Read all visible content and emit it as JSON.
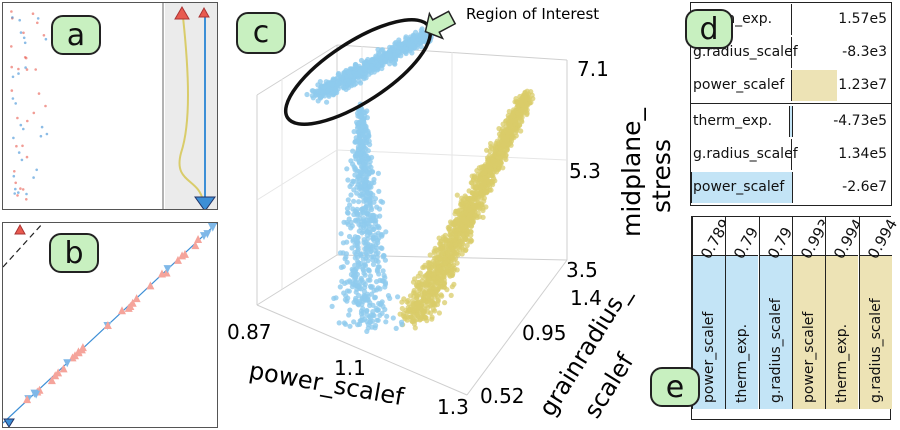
{
  "badges": {
    "a": "a",
    "b": "b",
    "c": "c",
    "d": "d",
    "e": "e"
  },
  "colors": {
    "blue_cluster": "#8ecbee",
    "yellow_cluster": "#d9cc6a",
    "red_marker": "#e85a4f",
    "blue_marker": "#3d8fd6",
    "badge_fill": "#c8f0c0",
    "blue_fill": "#c3e4f6",
    "tan_fill": "#ede3b5"
  },
  "chart_data": {
    "type": "scatter",
    "annotation": "Region of Interest",
    "x_axis": {
      "label": "power_scalef",
      "ticks": [
        "0.87",
        "1.1",
        "1.3"
      ],
      "range": [
        0.87,
        1.3
      ]
    },
    "y_axis": {
      "label": [
        "grainradius_",
        "scalef"
      ],
      "ticks": [
        "0.52",
        "0.95",
        "1.4"
      ],
      "range": [
        0.52,
        1.4
      ]
    },
    "z_axis": {
      "label": [
        "midplane_",
        "stress"
      ],
      "ticks": [
        "3.5",
        "5.3",
        "7.1"
      ],
      "range": [
        3.5,
        7.1
      ]
    },
    "series": [
      {
        "color": "#8ecbee",
        "role": "highlighted cluster"
      },
      {
        "color": "#d9cc6a",
        "role": "other cluster"
      }
    ]
  },
  "table_d": {
    "groups": [
      {
        "color": "#ede3b5",
        "rows": [
          {
            "label": "therm_exp.",
            "value": "1.57e5",
            "fill": 0.0
          },
          {
            "label": "g.radius_scalef",
            "value": "-8.3e3",
            "fill": 0.0
          },
          {
            "label": "power_scalef",
            "value": "1.23e7",
            "fill": 0.45
          }
        ]
      },
      {
        "color": "#c3e4f6",
        "rows": [
          {
            "label": "therm_exp.",
            "value": "-4.73e5",
            "fill": -0.02
          },
          {
            "label": "g.radius_scalef",
            "value": "1.34e5",
            "fill": 0.0
          },
          {
            "label": "power_scalef",
            "value": "-2.6e7",
            "fill": -1.0
          }
        ]
      }
    ]
  },
  "table_e": {
    "columns": [
      {
        "value": "0.789",
        "label": "power_scalef",
        "color": "#c3e4f6"
      },
      {
        "value": "0.79",
        "label": "therm_exp.",
        "color": "#c3e4f6"
      },
      {
        "value": "0.79",
        "label": "g.radius_scalef",
        "color": "#c3e4f6"
      },
      {
        "value": "0.993",
        "label": "power_scalef",
        "color": "#ede3b5"
      },
      {
        "value": "0.994",
        "label": "therm_exp.",
        "color": "#ede3b5"
      },
      {
        "value": "0.994",
        "label": "g.radius_scalef",
        "color": "#ede3b5"
      }
    ]
  }
}
